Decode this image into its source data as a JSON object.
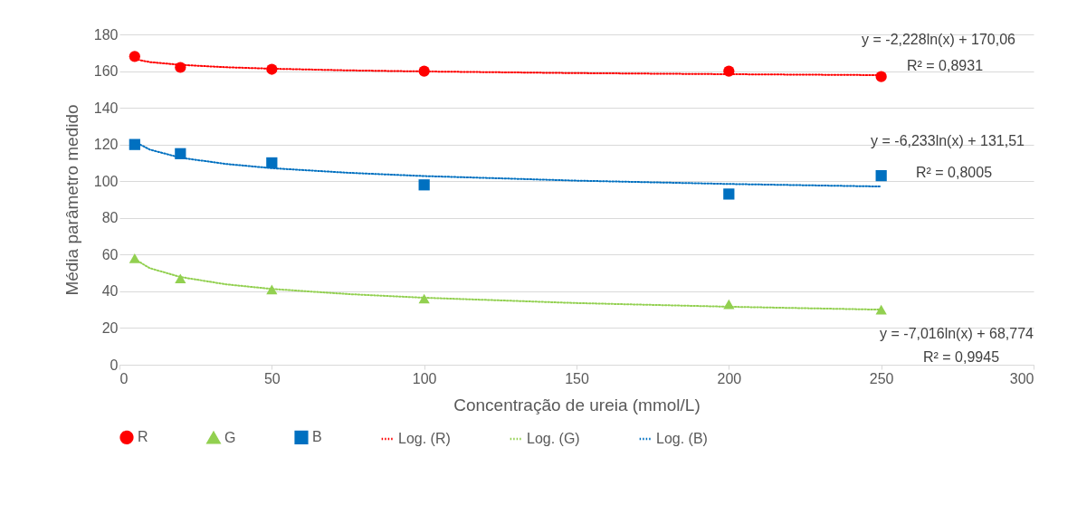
{
  "chart_data": {
    "type": "scatter",
    "xlabel": "Concentração de ureia (mmol/L)",
    "ylabel": "Média parâmetro medido",
    "xlim": [
      0,
      300
    ],
    "xticks": [
      0,
      50,
      100,
      150,
      200,
      250,
      300
    ],
    "ylim": [
      0,
      180
    ],
    "yticks": [
      0,
      20,
      40,
      60,
      80,
      100,
      120,
      140,
      160,
      180
    ],
    "grid": "y",
    "legend": "bottom",
    "x": [
      5,
      20,
      50,
      100,
      200,
      250
    ],
    "series": [
      {
        "name": "R",
        "marker": "circle",
        "color": "#ff0000",
        "values": [
          168,
          162,
          161,
          160,
          160,
          157
        ]
      },
      {
        "name": "G",
        "marker": "triangle",
        "color": "#92d050",
        "values": [
          58,
          47,
          41,
          36,
          33,
          30
        ]
      },
      {
        "name": "B",
        "marker": "square",
        "color": "#0070c0",
        "values": [
          120,
          115,
          110,
          98,
          93,
          103
        ]
      },
      {
        "name": "Log. (R)",
        "type": "line",
        "line_style": "dotted",
        "color": "#ff0000",
        "x": [
          5,
          10,
          20,
          35,
          50,
          75,
          100,
          150,
          200,
          250
        ],
        "values": [
          166.5,
          164.9,
          163.4,
          162.1,
          161.3,
          160.4,
          159.8,
          158.9,
          158.3,
          157.8
        ]
      },
      {
        "name": "Log. (G)",
        "type": "line",
        "line_style": "dotted",
        "color": "#92d050",
        "x": [
          5,
          10,
          20,
          35,
          50,
          75,
          100,
          150,
          200,
          250
        ],
        "values": [
          57.5,
          52.6,
          47.8,
          43.8,
          41.3,
          38.5,
          36.5,
          33.6,
          31.6,
          30.0
        ]
      },
      {
        "name": "Log. (B)",
        "type": "line",
        "line_style": "dotted",
        "color": "#0070c0",
        "x": [
          5,
          10,
          20,
          35,
          50,
          75,
          100,
          150,
          200,
          250
        ],
        "values": [
          121.5,
          117.2,
          112.8,
          109.4,
          107.1,
          104.6,
          102.8,
          100.3,
          98.5,
          97.1
        ]
      }
    ],
    "annotations": [
      "y = -2,228ln(x) + 170,06",
      "R² = 0,8931",
      "y = -6,233ln(x) + 131,51",
      "R² = 0,8005",
      "y = -7,016ln(x) + 68,774",
      "R² = 0,9945"
    ]
  }
}
